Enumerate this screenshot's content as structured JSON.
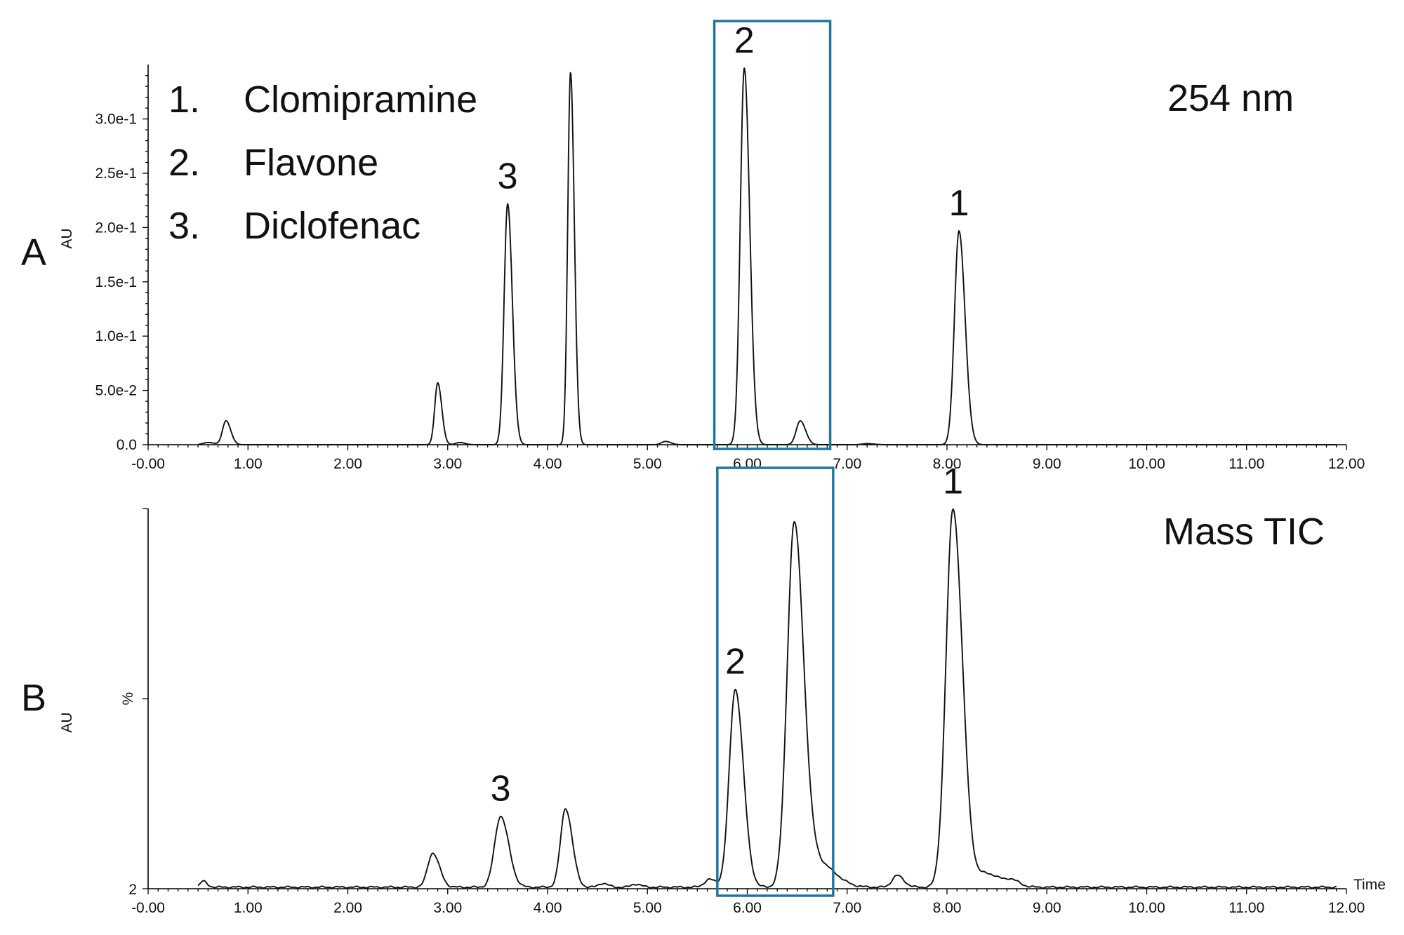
{
  "colors": {
    "highlight_box": "#1f77a0",
    "trace": "#111111"
  },
  "chart_data": [
    {
      "type": "line",
      "panel": "A",
      "ylabel": "AU",
      "annotation": "254 nm",
      "legend": [
        {
          "num": "1.",
          "name": "Clomipramine"
        },
        {
          "num": "2.",
          "name": "Flavone"
        },
        {
          "num": "3.",
          "name": "Diclofenac"
        }
      ],
      "xlim": [
        0,
        12
      ],
      "ylim": [
        0,
        0.35
      ],
      "x_ticks": [
        "-0.00",
        "1.00",
        "2.00",
        "3.00",
        "4.00",
        "5.00",
        "6.00",
        "7.00",
        "8.00",
        "9.00",
        "10.00",
        "11.00",
        "12.00"
      ],
      "x_tick_values": [
        0,
        1,
        2,
        3,
        4,
        5,
        6,
        7,
        8,
        9,
        10,
        11,
        12
      ],
      "y_ticks": [
        "0.0",
        "5.0e-2",
        "1.0e-1",
        "1.5e-1",
        "2.0e-1",
        "2.5e-1",
        "3.0e-1"
      ],
      "y_tick_values": [
        0,
        0.05,
        0.1,
        0.15,
        0.2,
        0.25,
        0.3
      ],
      "baseline": 0.0,
      "peaks": [
        {
          "rt": 0.6,
          "height": 0.002,
          "width": 0.05
        },
        {
          "rt": 0.78,
          "height": 0.022,
          "width": 0.035
        },
        {
          "rt": 2.9,
          "height": 0.057,
          "width": 0.03
        },
        {
          "rt": 3.12,
          "height": 0.002,
          "width": 0.04
        },
        {
          "rt": 3.6,
          "height": 0.222,
          "width": 0.035
        },
        {
          "rt": 4.23,
          "height": 0.343,
          "width": 0.028
        },
        {
          "rt": 5.18,
          "height": 0.003,
          "width": 0.04
        },
        {
          "rt": 5.97,
          "height": 0.347,
          "width": 0.04
        },
        {
          "rt": 6.53,
          "height": 0.022,
          "width": 0.04
        },
        {
          "rt": 7.2,
          "height": 0.001,
          "width": 0.05
        },
        {
          "rt": 8.12,
          "height": 0.197,
          "width": 0.045
        }
      ],
      "labeled_peaks": [
        {
          "label": "1",
          "rt": 8.12,
          "height": 0.197
        },
        {
          "label": "2",
          "rt": 5.97,
          "height": 0.347
        },
        {
          "label": "3",
          "rt": 3.6,
          "height": 0.222
        }
      ],
      "highlight_range": [
        5.67,
        6.83
      ]
    },
    {
      "type": "line",
      "panel": "B",
      "ylabel": "AU",
      "y_axis_label": "%",
      "annotation": "Mass TIC",
      "x_axis_title": "Time",
      "xlim": [
        0,
        12
      ],
      "ylim": [
        2,
        100
      ],
      "x_ticks": [
        "-0.00",
        "1.00",
        "2.00",
        "3.00",
        "4.00",
        "5.00",
        "6.00",
        "7.00",
        "8.00",
        "9.00",
        "10.00",
        "11.00",
        "12.00"
      ],
      "x_tick_values": [
        0,
        1,
        2,
        3,
        4,
        5,
        6,
        7,
        8,
        9,
        10,
        11,
        12
      ],
      "y_ticks": [
        "2"
      ],
      "y_tick_values": [
        2
      ],
      "baseline": 2.4,
      "peaks": [
        {
          "rt": 0.55,
          "height": 1.5,
          "width": 0.03
        },
        {
          "rt": 2.85,
          "height": 8.8,
          "width": 0.05
        },
        {
          "rt": 3.53,
          "height": 18.3,
          "width": 0.06
        },
        {
          "rt": 4.18,
          "height": 20.3,
          "width": 0.05
        },
        {
          "rt": 4.55,
          "height": 1.0,
          "width": 0.04
        },
        {
          "rt": 4.88,
          "height": 0.8,
          "width": 0.04
        },
        {
          "rt": 5.62,
          "height": 2.0,
          "width": 0.05
        },
        {
          "rt": 5.88,
          "height": 51.0,
          "width": 0.06
        },
        {
          "rt": 6.47,
          "height": 93.5,
          "width": 0.07
        },
        {
          "rt": 6.72,
          "height": 6.0,
          "width": 0.12
        },
        {
          "rt": 7.5,
          "height": 3.0,
          "width": 0.05
        },
        {
          "rt": 8.06,
          "height": 97.5,
          "width": 0.07
        },
        {
          "rt": 8.4,
          "height": 3.5,
          "width": 0.1
        },
        {
          "rt": 8.65,
          "height": 1.5,
          "width": 0.06
        }
      ],
      "labeled_peaks": [
        {
          "label": "1",
          "rt": 8.06,
          "height": 99.9
        },
        {
          "label": "2",
          "rt": 5.88,
          "height": 53.4
        },
        {
          "label": "3",
          "rt": 3.53,
          "height": 20.7
        }
      ],
      "highlight_range": [
        5.7,
        6.86
      ]
    }
  ]
}
